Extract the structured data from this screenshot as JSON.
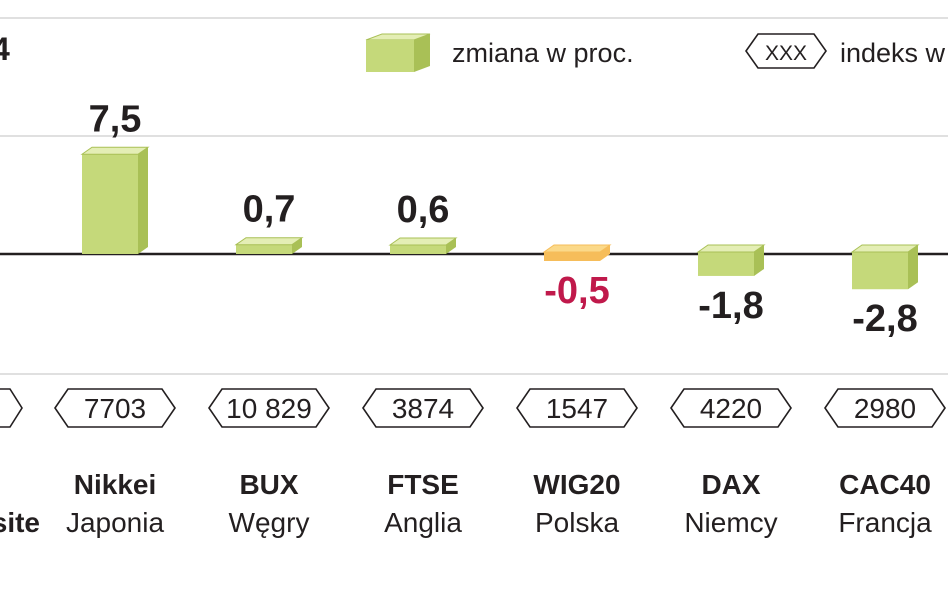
{
  "chart_data": {
    "type": "bar",
    "legend": {
      "change_label": "zmiana w proc.",
      "index_swatch": "XXX",
      "index_label": "indeks w"
    },
    "left_partial": {
      "top_digit": "4",
      "name_fragment": "site"
    },
    "categories": [
      {
        "index_name": "Nikkei",
        "country": "Japonia",
        "index_value": "7703",
        "change": 7.5,
        "change_label": "7,5"
      },
      {
        "index_name": "BUX",
        "country": "Węgry",
        "index_value": "10 829",
        "change": 0.7,
        "change_label": "0,7"
      },
      {
        "index_name": "FTSE",
        "country": "Anglia",
        "index_value": "3874",
        "change": 0.6,
        "change_label": "0,6"
      },
      {
        "index_name": "WIG20",
        "country": "Polska",
        "index_value": "1547",
        "change": -0.5,
        "change_label": "-0,5"
      },
      {
        "index_name": "DAX",
        "country": "Niemcy",
        "index_value": "4220",
        "change": -1.8,
        "change_label": "-1,8"
      },
      {
        "index_name": "CAC40",
        "country": "Francja",
        "index_value": "2980",
        "change": -2.8,
        "change_label": "-2,8"
      }
    ],
    "colors": {
      "bar_front": "#c5d97a",
      "bar_top": "#e4eeb5",
      "bar_side": "#a9c056",
      "highlight_front": "#f6bd5a",
      "highlight_top": "#fbd989",
      "negative_highlight_text": "#c0194b",
      "text": "#231f20",
      "grid": "#d6d6d6"
    },
    "highlight_index": "WIG20",
    "grid": true
  }
}
